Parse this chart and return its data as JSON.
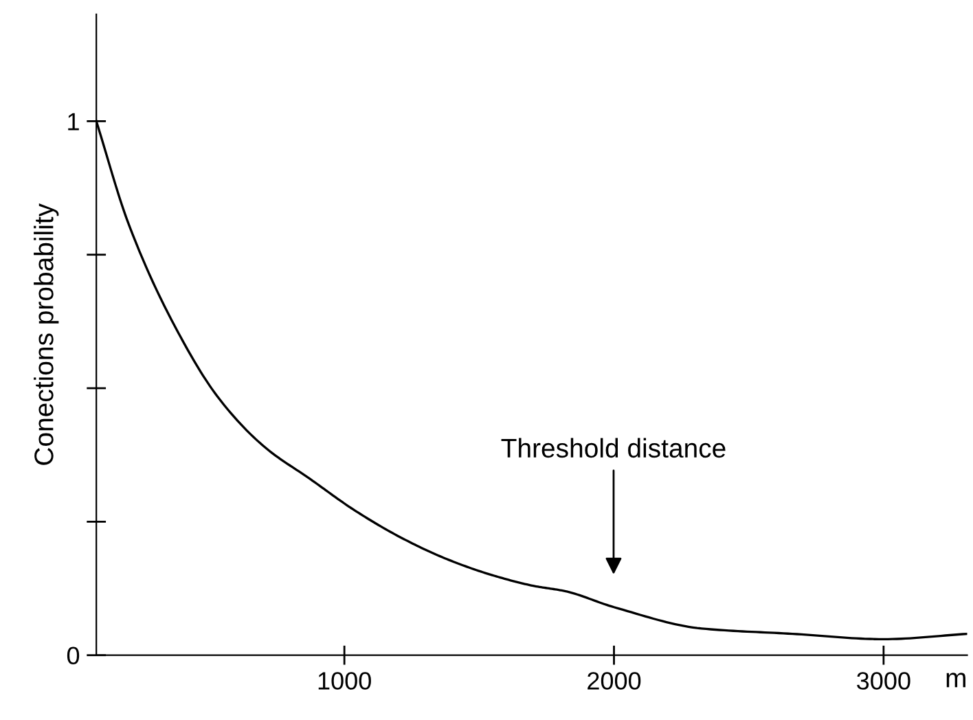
{
  "chart_data": {
    "type": "line",
    "ylabel": "Conections probability",
    "xlabel": "m",
    "x": [
      80,
      198,
      367,
      536,
      704,
      873,
      1042,
      1211,
      1380,
      1548,
      1700,
      1818,
      2000,
      2325,
      2662,
      3000,
      3310
    ],
    "series": [
      {
        "color": "#000000",
        "values": [
          1.0,
          0.81,
          0.62,
          0.48,
          0.39,
          0.33,
          0.27,
          0.22,
          0.18,
          0.15,
          0.13,
          0.12,
          0.09,
          0.05,
          0.04,
          0.03,
          0.04
        ]
      }
    ],
    "xlim": [
      80,
      3310
    ],
    "ylim": [
      0,
      1.2
    ],
    "xticks": [
      1000,
      2000,
      3000
    ],
    "yticks": [
      0,
      {
        "value": 0.25,
        "label": null
      },
      {
        "value": 0.5,
        "label": null
      },
      {
        "value": 0.75,
        "label": null
      },
      1
    ],
    "annotations": [
      "Threshold distance"
    ],
    "marker": "none",
    "line_style": "solid"
  }
}
